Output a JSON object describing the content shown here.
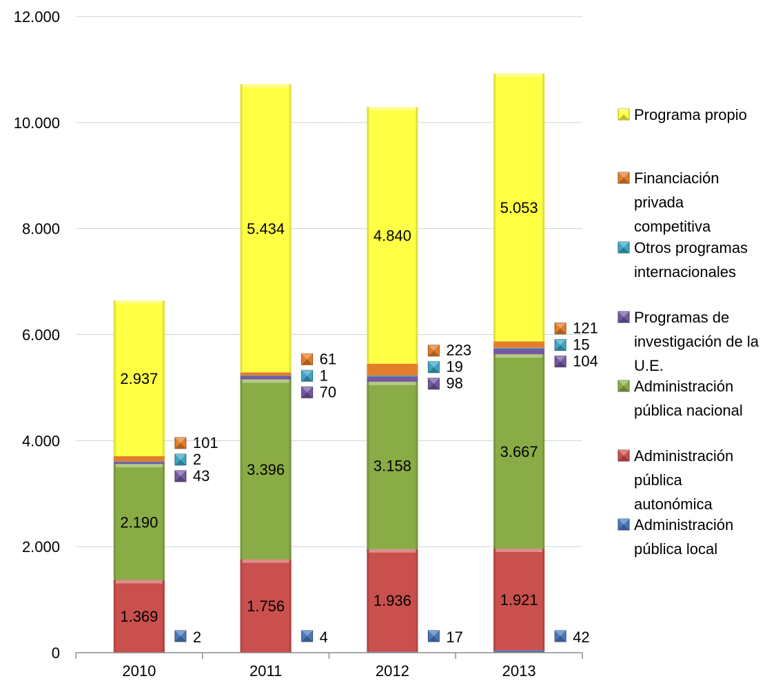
{
  "chart_data": {
    "type": "bar",
    "stacked": true,
    "title": "",
    "xlabel": "",
    "ylabel": "",
    "ylim": [
      0,
      12000
    ],
    "yticks": [
      0,
      2000,
      4000,
      6000,
      8000,
      10000,
      12000
    ],
    "ytick_labels": [
      "0",
      "2.000",
      "4.000",
      "6.000",
      "8.000",
      "10.000",
      "12.000"
    ],
    "grid": true,
    "legend_position": "right",
    "categories": [
      "2010",
      "2011",
      "2012",
      "2013"
    ],
    "series": [
      {
        "name": "Administración pública local",
        "color": "#4a78b8",
        "values": [
          2,
          4,
          17,
          42
        ],
        "labels": [
          "2",
          "4",
          "17",
          "42"
        ]
      },
      {
        "name": "Administración pública autonómica",
        "color": "#c9504d",
        "values": [
          1369,
          1756,
          1936,
          1921
        ],
        "labels": [
          "1.369",
          "1.756",
          "1.936",
          "1.921"
        ]
      },
      {
        "name": "Administración pública nacional",
        "color": "#8aac46",
        "values": [
          2190,
          3396,
          3158,
          3667
        ],
        "labels": [
          "2.190",
          "3.396",
          "3.158",
          "3.667"
        ]
      },
      {
        "name": "Programas de investigación de la U.E.",
        "color": "#7458a0",
        "values": [
          43,
          70,
          98,
          104
        ],
        "labels": [
          "43",
          "70",
          "98",
          "104"
        ]
      },
      {
        "name": "Otros programas internacionales",
        "color": "#3ea5c2",
        "values": [
          2,
          1,
          19,
          15
        ],
        "labels": [
          "2",
          "1",
          "19",
          "15"
        ]
      },
      {
        "name": "Financiación privada competitiva",
        "color": "#e27d2b",
        "values": [
          101,
          61,
          223,
          121
        ],
        "labels": [
          "101",
          "61",
          "223",
          "121"
        ]
      },
      {
        "name": "Programa propio",
        "color": "#ffff44",
        "values": [
          2937,
          5434,
          4840,
          5053
        ],
        "labels": [
          "2.937",
          "5.434",
          "4.840",
          "5.053"
        ]
      }
    ],
    "legend_order": [
      {
        "lines": [
          "Programa propio"
        ],
        "color": "#ffff44"
      },
      {
        "lines": [
          "Financiación",
          "privada",
          "competitiva"
        ],
        "color": "#e27d2b"
      },
      {
        "lines": [
          "Otros programas",
          "internacionales"
        ],
        "color": "#3ea5c2"
      },
      {
        "lines": [
          "Programas de",
          "investigación de la",
          "U.E."
        ],
        "color": "#7458a0"
      },
      {
        "lines": [
          "Administración",
          "pública nacional"
        ],
        "color": "#8aac46"
      },
      {
        "lines": [
          "Administración",
          "pública",
          "autonómica"
        ],
        "color": "#c9504d"
      },
      {
        "lines": [
          "Administración",
          "pública local"
        ],
        "color": "#4a78b8"
      }
    ]
  }
}
